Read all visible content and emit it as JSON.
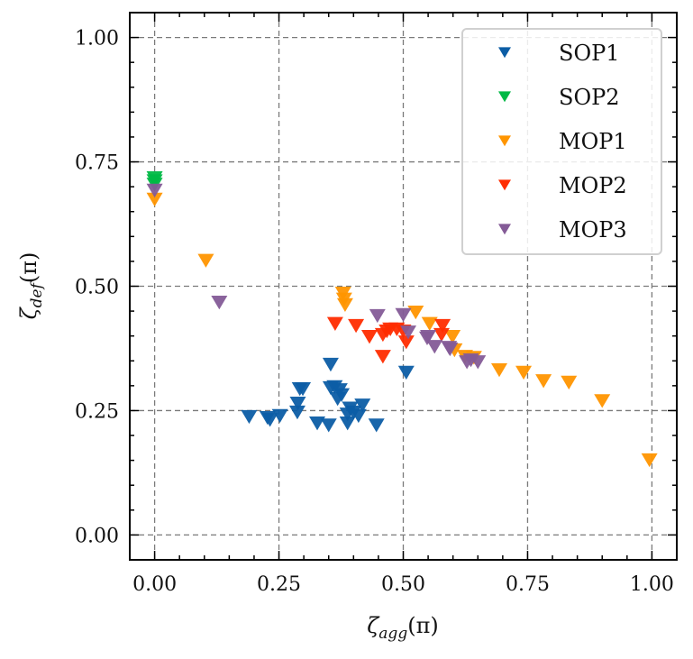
{
  "chart_data": {
    "type": "scatter",
    "title": "",
    "xlabel": {
      "symbol": "ζ",
      "subscript": "agg",
      "suffix": "(π)"
    },
    "ylabel": {
      "symbol": "ζ",
      "subscript": "def",
      "suffix": "(π)"
    },
    "xlim": [
      -0.05,
      1.05
    ],
    "ylim": [
      -0.05,
      1.05
    ],
    "xticks": [
      0.0,
      0.25,
      0.5,
      0.75,
      1.0
    ],
    "yticks": [
      0.0,
      0.25,
      0.5,
      0.75,
      1.0
    ],
    "xtick_labels": [
      "0.00",
      "0.25",
      "0.50",
      "0.75",
      "1.00"
    ],
    "ytick_labels": [
      "0.00",
      "0.25",
      "0.50",
      "0.75",
      "1.00"
    ],
    "minor_ticks_per_major": 4,
    "grid": true,
    "marker": "triangle-down",
    "legend_position": "top-right",
    "series": [
      {
        "name": "SOP1",
        "color": "#0C5DA5",
        "points": [
          [
            0.19,
            0.238
          ],
          [
            0.227,
            0.236
          ],
          [
            0.232,
            0.232
          ],
          [
            0.252,
            0.24
          ],
          [
            0.287,
            0.247
          ],
          [
            0.288,
            0.265
          ],
          [
            0.292,
            0.294
          ],
          [
            0.298,
            0.294
          ],
          [
            0.327,
            0.225
          ],
          [
            0.35,
            0.221
          ],
          [
            0.354,
            0.343
          ],
          [
            0.354,
            0.296
          ],
          [
            0.362,
            0.298
          ],
          [
            0.372,
            0.292
          ],
          [
            0.368,
            0.274
          ],
          [
            0.376,
            0.282
          ],
          [
            0.388,
            0.243
          ],
          [
            0.388,
            0.225
          ],
          [
            0.393,
            0.255
          ],
          [
            0.4,
            0.247
          ],
          [
            0.418,
            0.261
          ],
          [
            0.41,
            0.24
          ],
          [
            0.446,
            0.221
          ],
          [
            0.506,
            0.327
          ]
        ]
      },
      {
        "name": "SOP2",
        "color": "#00B945",
        "points": [
          [
            0.0,
            0.718
          ],
          [
            0.0,
            0.712
          ],
          [
            0.0,
            0.705
          ]
        ]
      },
      {
        "name": "MOP1",
        "color": "#FF9500",
        "points": [
          [
            0.0,
            0.675
          ],
          [
            0.103,
            0.552
          ],
          [
            0.379,
            0.486
          ],
          [
            0.381,
            0.474
          ],
          [
            0.383,
            0.463
          ],
          [
            0.525,
            0.448
          ],
          [
            0.553,
            0.425
          ],
          [
            0.599,
            0.399
          ],
          [
            0.603,
            0.372
          ],
          [
            0.624,
            0.359
          ],
          [
            0.642,
            0.357
          ],
          [
            0.693,
            0.332
          ],
          [
            0.742,
            0.327
          ],
          [
            0.782,
            0.31
          ],
          [
            0.833,
            0.307
          ],
          [
            0.9,
            0.27
          ],
          [
            0.995,
            0.151
          ]
        ]
      },
      {
        "name": "MOP2",
        "color": "#FF2C00",
        "points": [
          [
            0.363,
            0.425
          ],
          [
            0.405,
            0.421
          ],
          [
            0.432,
            0.399
          ],
          [
            0.459,
            0.403
          ],
          [
            0.467,
            0.41
          ],
          [
            0.474,
            0.414
          ],
          [
            0.487,
            0.414
          ],
          [
            0.5,
            0.41
          ],
          [
            0.459,
            0.359
          ],
          [
            0.506,
            0.388
          ],
          [
            0.579,
            0.421
          ],
          [
            0.577,
            0.403
          ]
        ]
      },
      {
        "name": "MOP3",
        "color": "#845B97",
        "points": [
          [
            0.0,
            0.693
          ],
          [
            0.13,
            0.468
          ],
          [
            0.448,
            0.441
          ],
          [
            0.5,
            0.443
          ],
          [
            0.51,
            0.408
          ],
          [
            0.548,
            0.396
          ],
          [
            0.55,
            0.399
          ],
          [
            0.563,
            0.379
          ],
          [
            0.592,
            0.377
          ],
          [
            0.594,
            0.374
          ],
          [
            0.628,
            0.348
          ],
          [
            0.65,
            0.348
          ],
          [
            0.636,
            0.352
          ]
        ]
      }
    ]
  }
}
